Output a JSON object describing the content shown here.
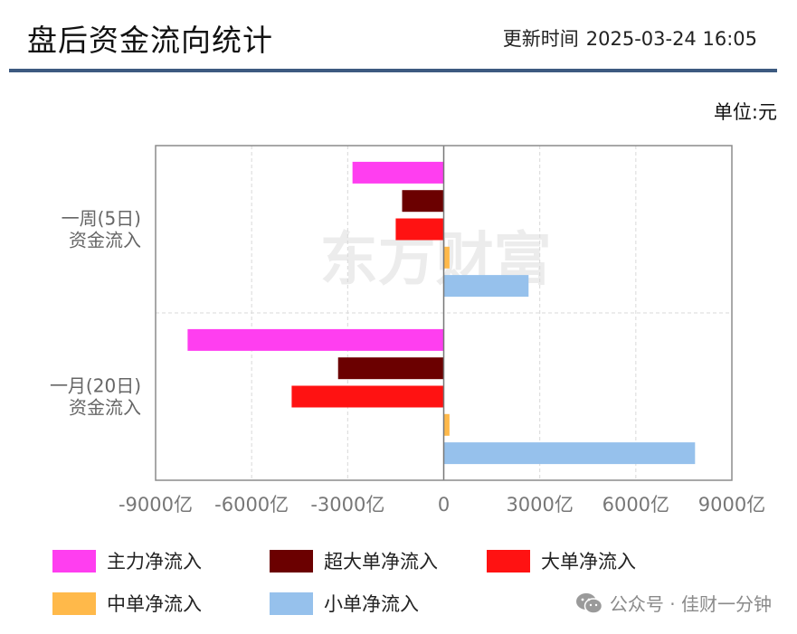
{
  "header": {
    "title": "盘后资金流向统计",
    "update_label": "更新时间",
    "update_time": "2025-03-24 16:05"
  },
  "unit_label": "单位:元",
  "watermark": "东方财富",
  "footer": {
    "wechat_text": "公众号 · 佳财一分钟",
    "wechat_icon": "wechat-icon"
  },
  "chart_data": {
    "type": "bar",
    "orientation": "horizontal",
    "categories": [
      {
        "line1": "一周(5日)",
        "line2": "资金流入"
      },
      {
        "line1": "一月(20日)",
        "line2": "资金流入"
      }
    ],
    "x_ticks": [
      "-9000亿",
      "-6000亿",
      "-3000亿",
      "0",
      "3000亿",
      "6000亿",
      "9000亿"
    ],
    "x_tick_values": [
      -9000,
      -6000,
      -3000,
      0,
      3000,
      6000,
      9000
    ],
    "xlim": [
      -9000,
      9000
    ],
    "value_unit": "亿",
    "grid": true,
    "legend_position": "bottom",
    "series": [
      {
        "name": "主力净流入",
        "color": "#ff3ef0",
        "values": [
          -2850,
          -8000
        ]
      },
      {
        "name": "超大单净流入",
        "color": "#6b0000",
        "values": [
          -1300,
          -3300
        ]
      },
      {
        "name": "大单净流入",
        "color": "#ff1212",
        "values": [
          -1500,
          -4750
        ]
      },
      {
        "name": "中单净流入",
        "color": "#ffb94a",
        "values": [
          180,
          180
        ]
      },
      {
        "name": "小单净流入",
        "color": "#96c1ec",
        "values": [
          2650,
          7850
        ]
      }
    ]
  }
}
